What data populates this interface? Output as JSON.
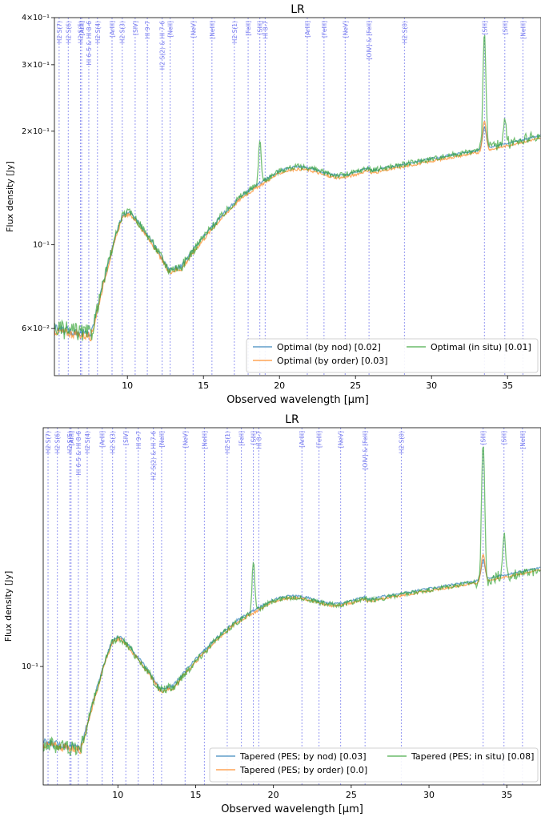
{
  "chart_data": [
    {
      "type": "line",
      "title": "LR",
      "xlabel": "Observed wavelength [μm]",
      "ylabel": "Flux density [Jy]",
      "xlim": [
        5.2,
        37.2
      ],
      "ylim": [
        0.045,
        0.4
      ],
      "yscale": "log",
      "xticks": [
        10,
        15,
        20,
        25,
        30,
        35
      ],
      "yticks": [
        {
          "v": 0.4,
          "label": "4×10⁻¹"
        },
        {
          "v": 0.3,
          "label": "3×10⁻¹"
        },
        {
          "v": 0.2,
          "label": "2×10⁻¹"
        },
        {
          "v": 0.1,
          "label": "10⁻¹"
        },
        {
          "v": 0.06,
          "label": "6×10⁻²"
        }
      ],
      "legend_position": "lower-right",
      "series": [
        {
          "name": "Optimal (by nod) [0.02]",
          "color": "#1f77b4",
          "variant": "base"
        },
        {
          "name": "Optimal (by order) [0.03]",
          "color": "#ff7f0e",
          "variant": "order"
        },
        {
          "name": "Optimal (in situ) [0.01]",
          "color": "#2ca02c",
          "variant": "insitu"
        }
      ]
    },
    {
      "type": "line",
      "title": "LR",
      "xlabel": "Observed wavelength [μm]",
      "ylabel": "Flux density [Jy]",
      "xlim": [
        5.2,
        37.2
      ],
      "ylim": [
        0.045,
        0.5
      ],
      "yscale": "log",
      "xticks": [
        10,
        15,
        20,
        25,
        30,
        35
      ],
      "yticks": [
        {
          "v": 0.1,
          "label": "10⁻¹"
        }
      ],
      "legend_position": "lower-right",
      "series": [
        {
          "name": "Tapered (PES; by nod) [0.03]",
          "color": "#1f77b4",
          "variant": "base"
        },
        {
          "name": "Tapered (PES; by order) [0.0]",
          "color": "#ff7f0e",
          "variant": "order"
        },
        {
          "name": "Tapered (PES; in situ) [0.08]",
          "color": "#2ca02c",
          "variant": "insitu2"
        }
      ]
    }
  ],
  "line_markers": [
    {
      "x": 5.51,
      "label": "H2 S(7)"
    },
    {
      "x": 6.11,
      "label": "H2 S(6)"
    },
    {
      "x": 6.91,
      "label": "H2 S(5)"
    },
    {
      "x": 6.99,
      "label": "[ArII]"
    },
    {
      "x": 7.46,
      "label": "HI 6-5 & HI 8-6"
    },
    {
      "x": 8.03,
      "label": "H2 S(4)"
    },
    {
      "x": 8.99,
      "label": "[ArIII]"
    },
    {
      "x": 9.66,
      "label": "H2 S(3)"
    },
    {
      "x": 10.51,
      "label": "[SIV]"
    },
    {
      "x": 11.31,
      "label": "HI 9-7"
    },
    {
      "x": 12.28,
      "label": "H2 S(2) & HI 7-6"
    },
    {
      "x": 12.81,
      "label": "[NeII]"
    },
    {
      "x": 14.32,
      "label": "[NeV]"
    },
    {
      "x": 15.56,
      "label": "[NeIII]"
    },
    {
      "x": 17.03,
      "label": "H2 S(1)"
    },
    {
      "x": 17.94,
      "label": "[FeII]"
    },
    {
      "x": 18.71,
      "label": "[SIII]"
    },
    {
      "x": 19.06,
      "label": "HI 8-7"
    },
    {
      "x": 21.83,
      "label": "[ArIII]"
    },
    {
      "x": 22.93,
      "label": "[FeIII]"
    },
    {
      "x": 24.32,
      "label": "[NeV]"
    },
    {
      "x": 25.89,
      "label": "[OIV] & [FeII]"
    },
    {
      "x": 28.22,
      "label": "H2 S(0)"
    },
    {
      "x": 33.48,
      "label": "[SIII]"
    },
    {
      "x": 34.82,
      "label": "[SiII]"
    },
    {
      "x": 36.01,
      "label": "[NeIII]"
    }
  ]
}
